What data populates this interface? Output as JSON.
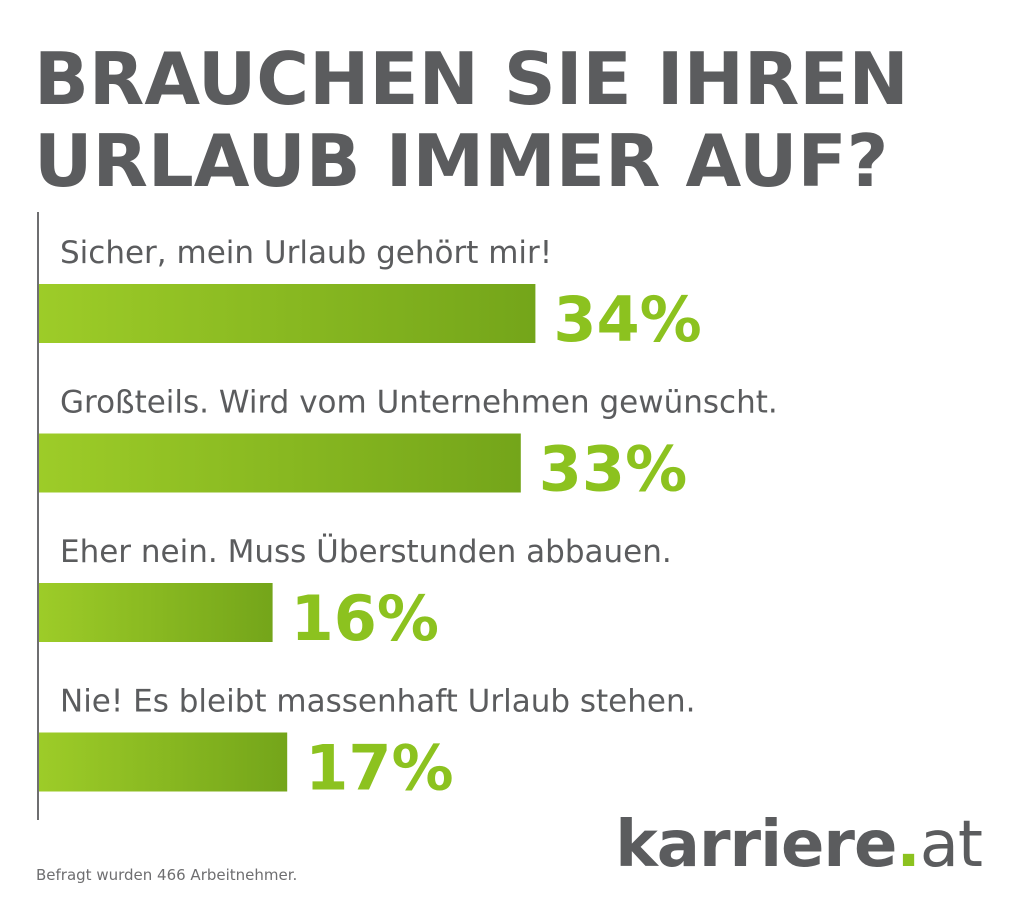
{
  "title_lines": [
    "BRAUCHEN SIE IHREN",
    "URLAUB IMMER AUF?"
  ],
  "footnote": "Befragt wurden 466 Arbeitnehmer.",
  "logo": {
    "name": "karriere",
    "dot": ".",
    "tld": "at"
  },
  "colors": {
    "bar_light": "#9dcc28",
    "bar_dark": "#74a51a",
    "value_text": "#8cc21f",
    "title_text": "#5b5c5e"
  },
  "chart_data": {
    "type": "bar",
    "orientation": "horizontal",
    "categories": [
      "Sicher, mein Urlaub gehört mir!",
      "Großteils. Wird vom Unternehmen gewünscht.",
      "Eher nein. Muss Überstunden abbauen.",
      "Nie! Es bleibt massenhaft Urlaub stehen."
    ],
    "values": [
      34,
      33,
      16,
      17
    ],
    "value_labels": [
      "34%",
      "33%",
      "16%",
      "17%"
    ],
    "unit": "%",
    "title": "BRAUCHEN SIE IHREN URLAUB IMMER AUF?",
    "xlim": [
      0,
      100
    ],
    "grid": false,
    "legend": "none"
  }
}
